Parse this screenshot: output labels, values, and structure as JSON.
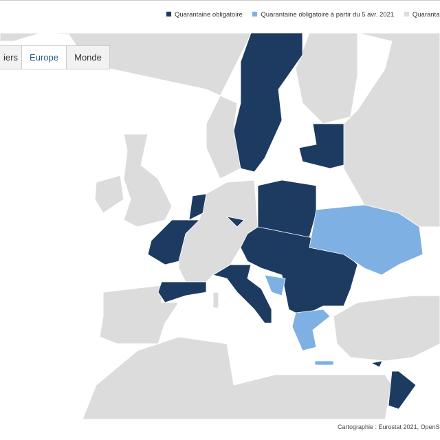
{
  "legend": {
    "items": [
      "Quarantaine obligatoire",
      "Quarantaine obligatoire à partir du 5 avr. 2021",
      "Quarantaine r"
    ]
  },
  "tabs": [
    "iers",
    "Europe",
    "Monde"
  ],
  "attribution": "Cartographie : Eurostat 2021, OpenS"
}
